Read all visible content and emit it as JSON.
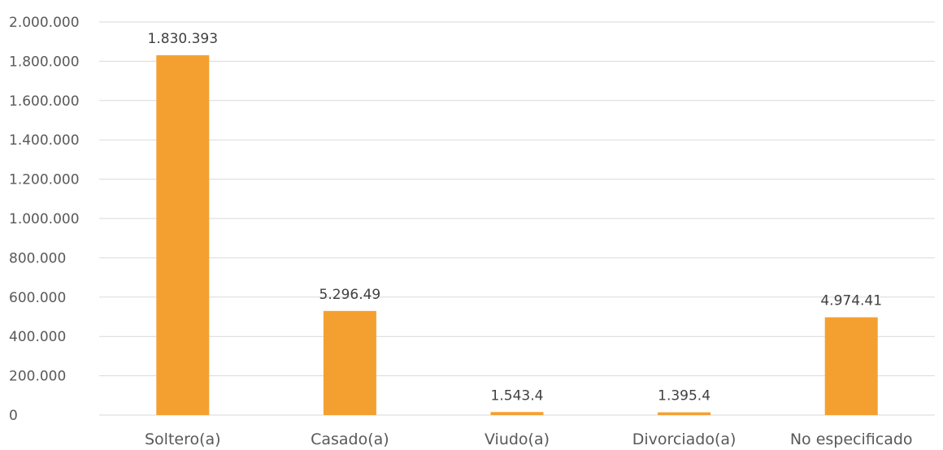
{
  "chart_data": {
    "type": "bar",
    "title": "",
    "xlabel": "",
    "ylabel": "",
    "categories": [
      "Soltero(a)",
      "Casado(a)",
      "Viudo(a)",
      "Divorciado(a)",
      "No especificado"
    ],
    "values": [
      1830393,
      529649,
      15434,
      13954,
      497441
    ],
    "data_labels": [
      "1.830.393",
      "5.296.49",
      "1.543.4",
      "1.395.4",
      "4.974.41"
    ],
    "ylim": [
      0,
      2000000
    ],
    "y_ticks": [
      0,
      200000,
      400000,
      600000,
      800000,
      1000000,
      1200000,
      1400000,
      1600000,
      1800000,
      2000000
    ],
    "y_tick_labels": [
      "0",
      "200.000",
      "400.000",
      "600.000",
      "800.000",
      "1.000.000",
      "1.200.000",
      "1.400.000",
      "1.600.000",
      "1.800.000",
      "2.000.000"
    ],
    "grid": true,
    "legend": "none",
    "bar_color": "#f4a030"
  }
}
